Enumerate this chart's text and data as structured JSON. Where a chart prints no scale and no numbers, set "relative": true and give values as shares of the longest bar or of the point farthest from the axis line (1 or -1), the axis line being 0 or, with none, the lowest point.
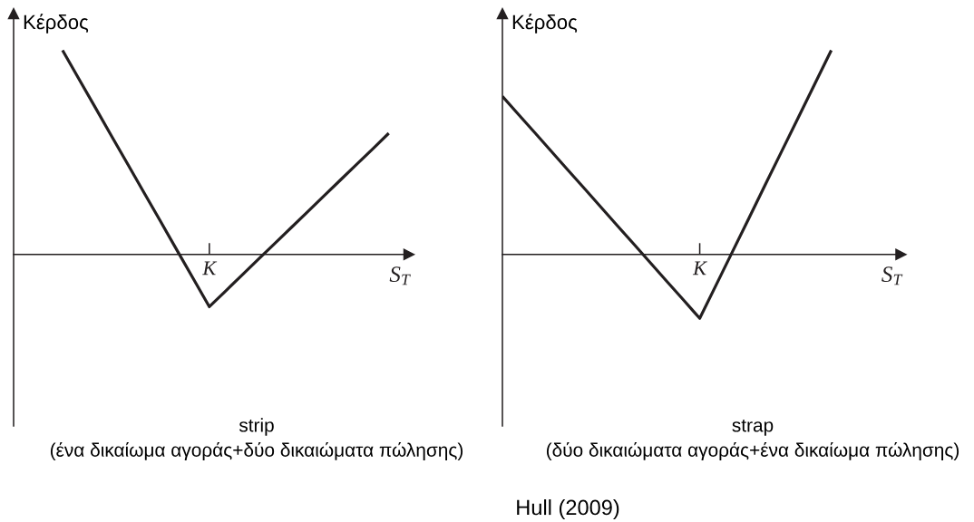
{
  "chart_data": [
    {
      "type": "line",
      "title": "strip",
      "subtitle": "(ένα δικαίωμα αγοράς+δύο δικαιώματα πώλησης)",
      "xlabel": "S$_{T}$",
      "ylabel": "Κέρδος",
      "relative": true,
      "tick_labels": false,
      "categories": [
        null,
        null,
        null,
        null,
        null,
        null,
        null,
        null,
        null,
        null,
        null,
        null,
        null,
        null,
        null,
        null,
        null,
        null,
        null,
        null,
        null,
        null,
        null,
        null,
        null
      ],
      "series": [
        {
          "color": "#231f20",
          "values": [
            null,
            null,
            null,
            1,
            0.86,
            0.721,
            0.581,
            0.442,
            0.302,
            0.163,
            0.023,
            -0.116,
            -0.256,
            -0.179,
            -0.101,
            -0.024,
            0.053,
            0.13,
            0.207,
            0.285,
            0.362,
            0.439,
            0.516,
            0.594,
            null
          ]
        }
      ],
      "line_style": "solid",
      "annotations": [
        "K"
      ]
    },
    {
      "type": "line",
      "title": "strap",
      "subtitle": "(δύο δικαιώματα αγοράς+ένα δικαίωμα πώλησης)",
      "xlabel": "S$_{T}$",
      "ylabel": "Κέρδος",
      "relative": true,
      "tick_labels": false,
      "categories": [
        null,
        null,
        null,
        null,
        null,
        null,
        null,
        null,
        null,
        null,
        null,
        null,
        null,
        null,
        null,
        null,
        null,
        null,
        null,
        null,
        null,
        null,
        null,
        null,
        null
      ],
      "series": [
        {
          "color": "#231f20",
          "values": [
            0.775,
            0.684,
            0.594,
            0.503,
            0.412,
            0.322,
            0.231,
            0.14,
            0.05,
            -0.041,
            -0.132,
            -0.222,
            -0.313,
            -0.149,
            0.015,
            0.179,
            0.344,
            0.508,
            0.672,
            0.836,
            1,
            null,
            null,
            null,
            null
          ]
        }
      ],
      "line_style": "solid",
      "annotations": [
        "K",
        "Hull (2009)"
      ]
    }
  ]
}
